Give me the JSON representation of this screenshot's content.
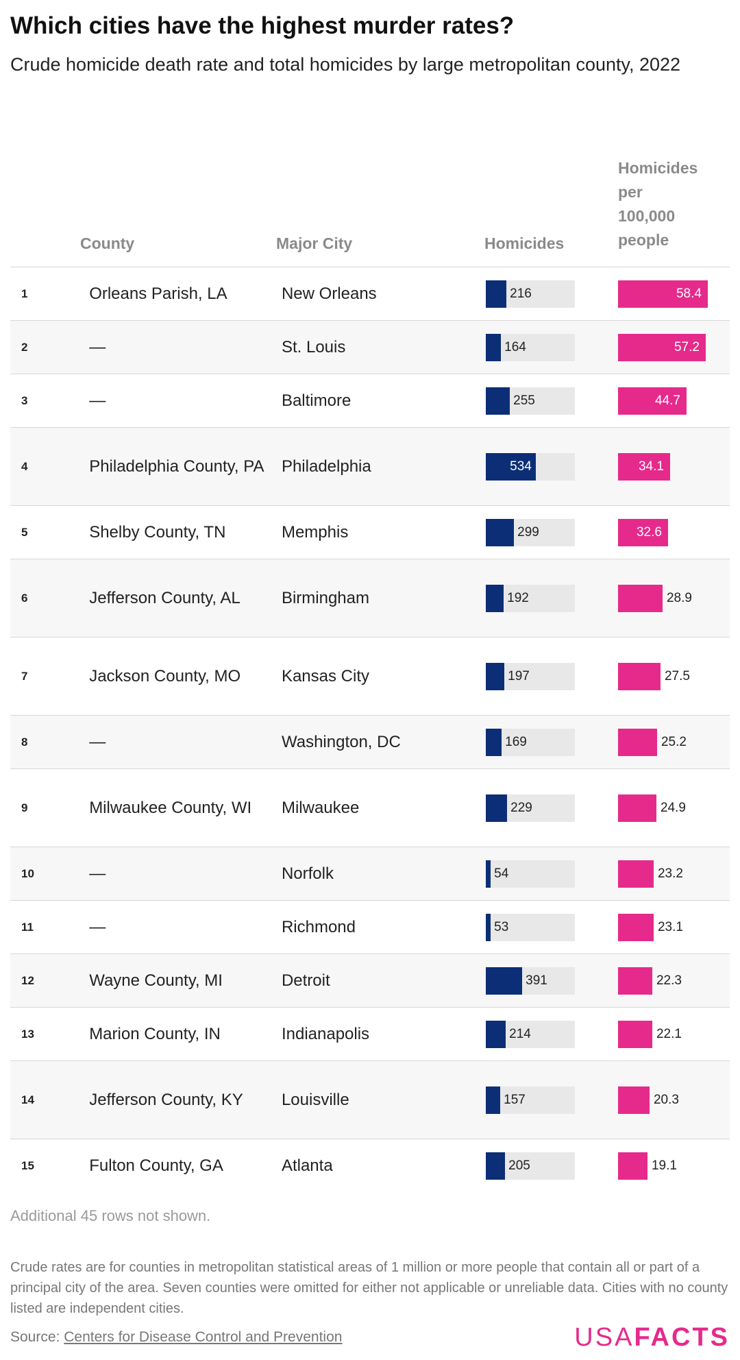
{
  "title": "Which cities have the highest murder rates?",
  "subtitle": "Crude homicide death rate and total homicides by large metropolitan county, 2022",
  "columns": {
    "county": "County",
    "city": "Major City",
    "homicides": "Homicides",
    "rate_line1": "Homicides",
    "rate_line2": "per",
    "rate_line3": "100,000",
    "rate_line4": "people"
  },
  "chart_data": {
    "type": "table",
    "columns": [
      "",
      "County",
      "Major City",
      "Homicides",
      "Homicides per 100,000 people"
    ],
    "homicides_max": 534,
    "rate_max": 58.4,
    "rows": [
      {
        "rank": "1",
        "county": "Orleans Parish, LA",
        "city": "New Orleans",
        "homicides": 216,
        "rate": 58.4
      },
      {
        "rank": "2",
        "county": "—",
        "city": "St. Louis",
        "homicides": 164,
        "rate": 57.2
      },
      {
        "rank": "3",
        "county": "—",
        "city": "Baltimore",
        "homicides": 255,
        "rate": 44.7
      },
      {
        "rank": "4",
        "county": "Philadelphia County, PA",
        "city": "Philadelphia",
        "homicides": 534,
        "rate": 34.1
      },
      {
        "rank": "5",
        "county": "Shelby County, TN",
        "city": "Memphis",
        "homicides": 299,
        "rate": 32.6
      },
      {
        "rank": "6",
        "county": "Jefferson County, AL",
        "city": "Birmingham",
        "homicides": 192,
        "rate": 28.9
      },
      {
        "rank": "7",
        "county": "Jackson County, MO",
        "city": "Kansas City",
        "homicides": 197,
        "rate": 27.5
      },
      {
        "rank": "8",
        "county": "—",
        "city": "Washington, DC",
        "homicides": 169,
        "rate": 25.2
      },
      {
        "rank": "9",
        "county": "Milwaukee County, WI",
        "city": "Milwaukee",
        "homicides": 229,
        "rate": 24.9
      },
      {
        "rank": "10",
        "county": "—",
        "city": "Norfolk",
        "homicides": 54,
        "rate": 23.2
      },
      {
        "rank": "11",
        "county": "—",
        "city": "Richmond",
        "homicides": 53,
        "rate": 23.1
      },
      {
        "rank": "12",
        "county": "Wayne County, MI",
        "city": "Detroit",
        "homicides": 391,
        "rate": 22.3
      },
      {
        "rank": "13",
        "county": "Marion County, IN",
        "city": "Indianapolis",
        "homicides": 214,
        "rate": 22.1
      },
      {
        "rank": "14",
        "county": "Jefferson County, KY",
        "city": "Louisville",
        "homicides": 157,
        "rate": 20.3
      },
      {
        "rank": "15",
        "county": "Fulton County, GA",
        "city": "Atlanta",
        "homicides": 205,
        "rate": 19.1
      }
    ]
  },
  "more_rows": "Additional 45 rows not shown.",
  "footnote": "Crude rates are for counties in metropolitan statistical areas of 1 million or more people that contain all or part of a principal city of the area. Seven counties were omitted for either not applicable or unreliable data. Cities with no county listed are independent cities.",
  "source_label": "Source:",
  "source_link": "Centers for Disease Control and Prevention",
  "logo_left": "USA",
  "logo_right": "FACTS",
  "colors": {
    "homicides_bar": "#0c2e77",
    "rate_bar": "#e52a8c",
    "track": "#e8e8e8"
  }
}
